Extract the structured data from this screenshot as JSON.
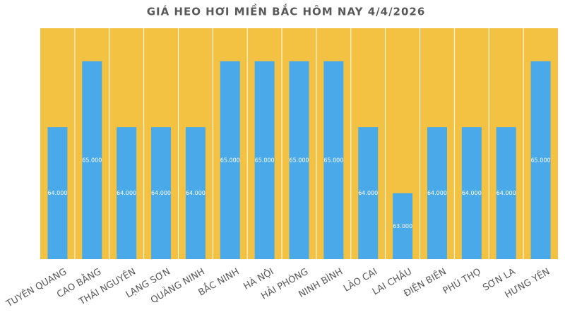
{
  "chart_data": {
    "type": "bar",
    "title": "GIÁ HEO HƠI MIỀN BẮC HÔM NAY 4/4/2026",
    "categories": [
      "TUYÊN QUANG",
      "CAO BẰNG",
      "THÁI NGUYÊN",
      "LẠNG SƠN",
      "QUẢNG NINH",
      "BẮC NINH",
      "HÀ NỘI",
      "HẢI PHÒNG",
      "NINH BÌNH",
      "LÀO CAI",
      "LAI CHÂU",
      "ĐIỆN BIÊN",
      "PHÚ THỌ",
      "SƠN LA",
      "HƯNG YÊN"
    ],
    "values": [
      64000,
      65000,
      64000,
      64000,
      64000,
      65000,
      65000,
      65000,
      65000,
      64000,
      63000,
      64000,
      64000,
      64000,
      65000
    ],
    "value_labels": [
      "64.000",
      "65.000",
      "64.000",
      "64.000",
      "64.000",
      "65.000",
      "65.000",
      "65.000",
      "65.000",
      "64.000",
      "63.000",
      "64.000",
      "64.000",
      "64.000",
      "65.000"
    ],
    "color": "#4aa9e8",
    "background": "#f4c243",
    "ylim": [
      62000,
      65500
    ]
  }
}
